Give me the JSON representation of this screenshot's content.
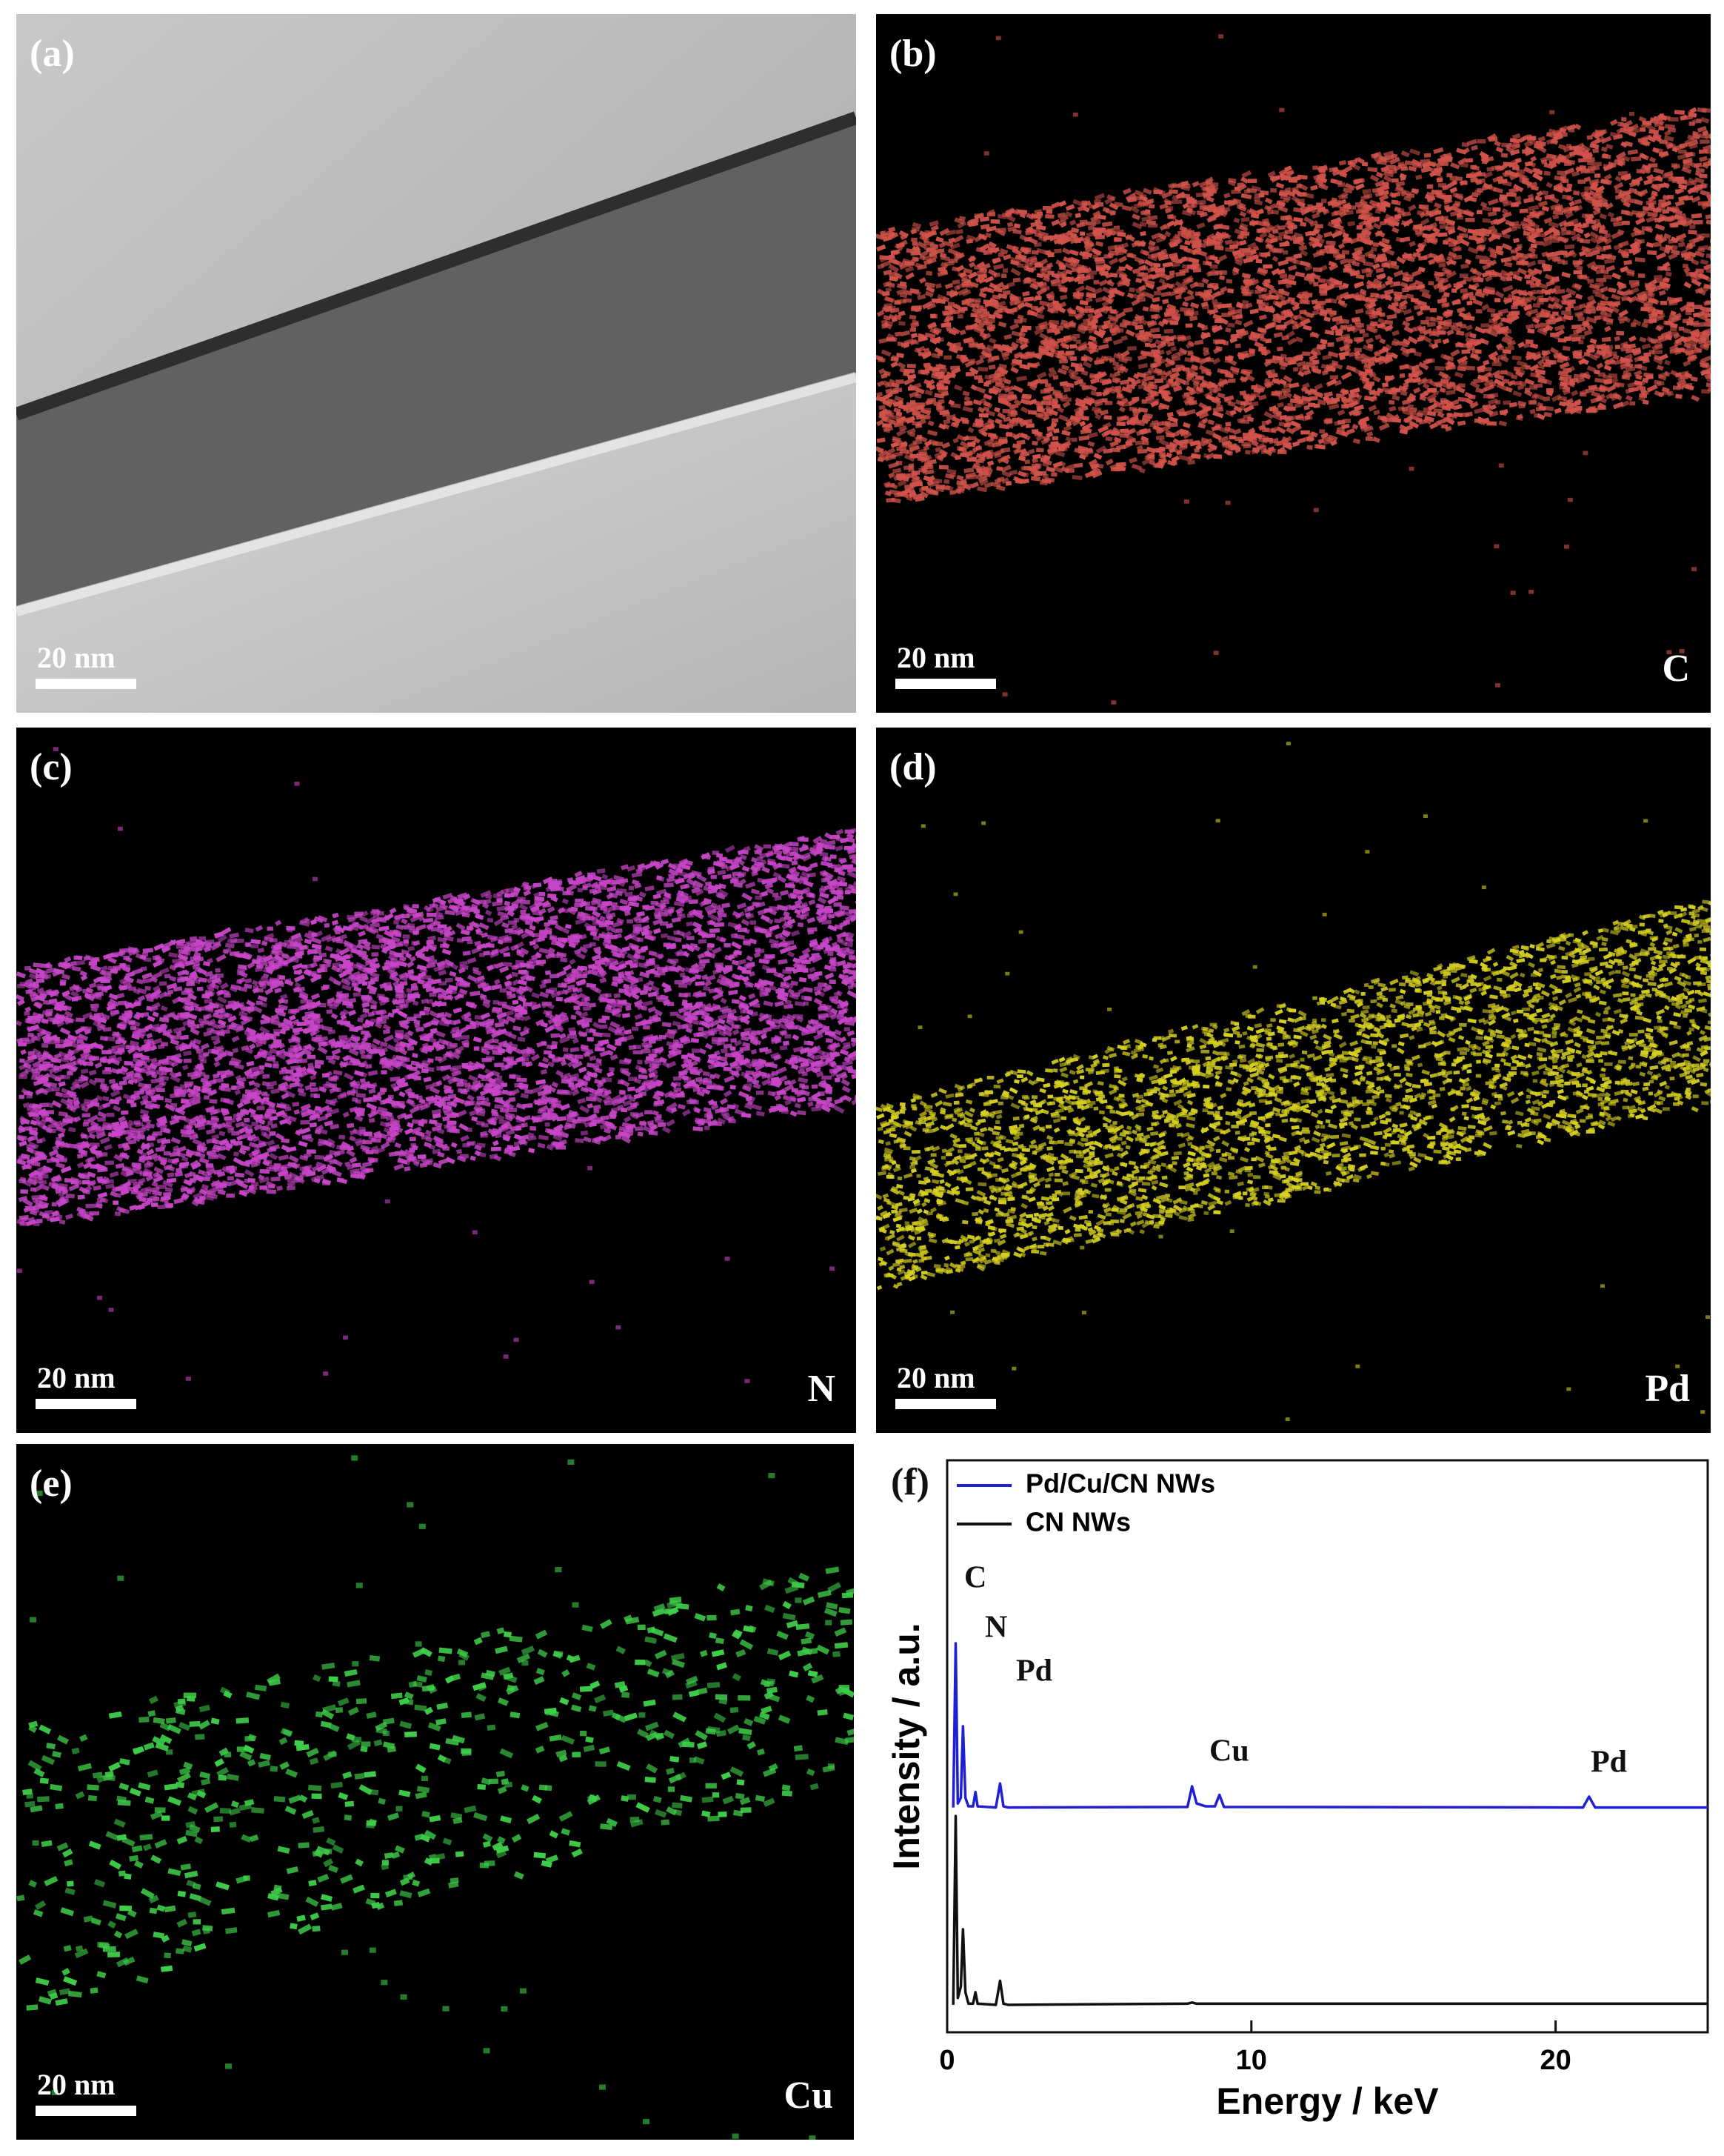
{
  "panels": [
    {
      "label": "(a)",
      "scale_bar": "20 nm"
    },
    {
      "label": "(b)",
      "scale_bar": "20 nm",
      "element": "C"
    },
    {
      "label": "(c)",
      "scale_bar": "20 nm",
      "element": "N"
    },
    {
      "label": "(d)",
      "scale_bar": "20 nm",
      "element": "Pd"
    },
    {
      "label": "(e)",
      "scale_bar": "20 nm",
      "element": "Cu"
    }
  ],
  "chart_data": {
    "type": "line",
    "panel_label": "(f)",
    "x_label": "Energy / keV",
    "y_label": "Intensity / a.u.",
    "x": [
      0.2,
      0.28,
      0.35,
      0.45,
      0.52,
      0.6,
      0.7,
      0.85,
      0.93,
      1.0,
      1.6,
      1.74,
      1.85,
      2.0,
      7.9,
      8.05,
      8.2,
      8.5,
      8.8,
      8.95,
      9.1,
      20.9,
      21.1,
      21.3,
      25
    ],
    "series": [
      {
        "name": "Pd/Cu/CN NWs",
        "color": "#1f1fd6",
        "values": [
          39.3,
          68,
          40,
          41,
          53.5,
          41,
          39.5,
          39.5,
          42,
          39.5,
          39.3,
          43.5,
          39.5,
          39.3,
          39.4,
          43,
          40,
          39.5,
          39.5,
          41.5,
          39.4,
          39.3,
          41.2,
          39.3,
          39.3
        ]
      },
      {
        "name": "CN NWs",
        "color": "#111111",
        "values": [
          4.8,
          37.8,
          6,
          8,
          18,
          7,
          5,
          5,
          7,
          5,
          4.8,
          9,
          5,
          4.8,
          5,
          5.2,
          5,
          5,
          5,
          5,
          5,
          5,
          5,
          5,
          5
        ]
      }
    ],
    "annotations": [
      "C",
      "N",
      "Pd",
      "Cu",
      "Pd"
    ],
    "xlim": [
      0,
      25
    ],
    "ylim": [
      0,
      100
    ],
    "xticks": [
      0,
      10,
      20
    ],
    "legend": "upper left"
  }
}
